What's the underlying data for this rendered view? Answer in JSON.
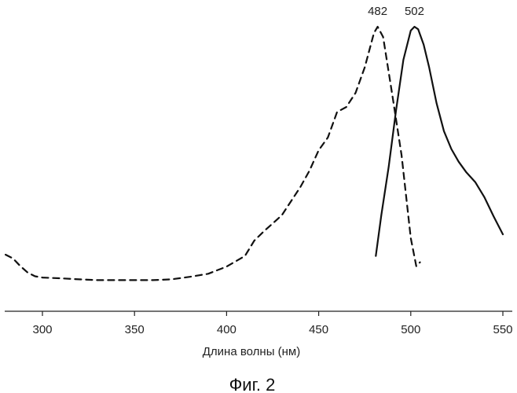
{
  "figure": {
    "caption": "Фиг. 2"
  },
  "chart_data": {
    "type": "line",
    "xlabel": "Длина волны (нм)",
    "ylabel": "",
    "xlim": [
      280,
      550
    ],
    "ylim": [
      0,
      1.0
    ],
    "x_ticks": [
      300,
      350,
      400,
      450,
      500,
      550
    ],
    "x_tick_labels": [
      "300",
      "350",
      "400",
      "450",
      "500",
      "550"
    ],
    "grid": false,
    "legend": "none",
    "peak_labels": [
      {
        "x": 482,
        "text": "482"
      },
      {
        "x": 502,
        "text": "502"
      }
    ],
    "series": [
      {
        "style": "dashed",
        "color": "#111111",
        "x": [
          280,
          284,
          288,
          292,
          296,
          300,
          310,
          320,
          330,
          340,
          350,
          360,
          370,
          380,
          390,
          400,
          410,
          415,
          420,
          430,
          440,
          445,
          450,
          455,
          460,
          465,
          470,
          475,
          480,
          482,
          485,
          490,
          495,
          500,
          503,
          505
        ],
        "y": [
          0.105,
          0.09,
          0.06,
          0.035,
          0.02,
          0.015,
          0.012,
          0.008,
          0.005,
          0.005,
          0.005,
          0.005,
          0.008,
          0.018,
          0.03,
          0.058,
          0.1,
          0.16,
          0.195,
          0.26,
          0.37,
          0.435,
          0.515,
          0.565,
          0.665,
          0.685,
          0.74,
          0.84,
          0.975,
          1.0,
          0.96,
          0.73,
          0.495,
          0.17,
          0.06,
          0.075
        ]
      },
      {
        "style": "solid",
        "color": "#111111",
        "x": [
          481,
          484,
          488,
          492,
          496,
          500,
          502,
          504,
          507,
          510,
          514,
          518,
          522,
          526,
          530,
          535,
          540,
          545,
          550
        ],
        "y": [
          0.1,
          0.26,
          0.45,
          0.67,
          0.87,
          0.985,
          1.0,
          0.99,
          0.93,
          0.84,
          0.7,
          0.59,
          0.52,
          0.47,
          0.43,
          0.39,
          0.33,
          0.255,
          0.185
        ]
      }
    ]
  }
}
